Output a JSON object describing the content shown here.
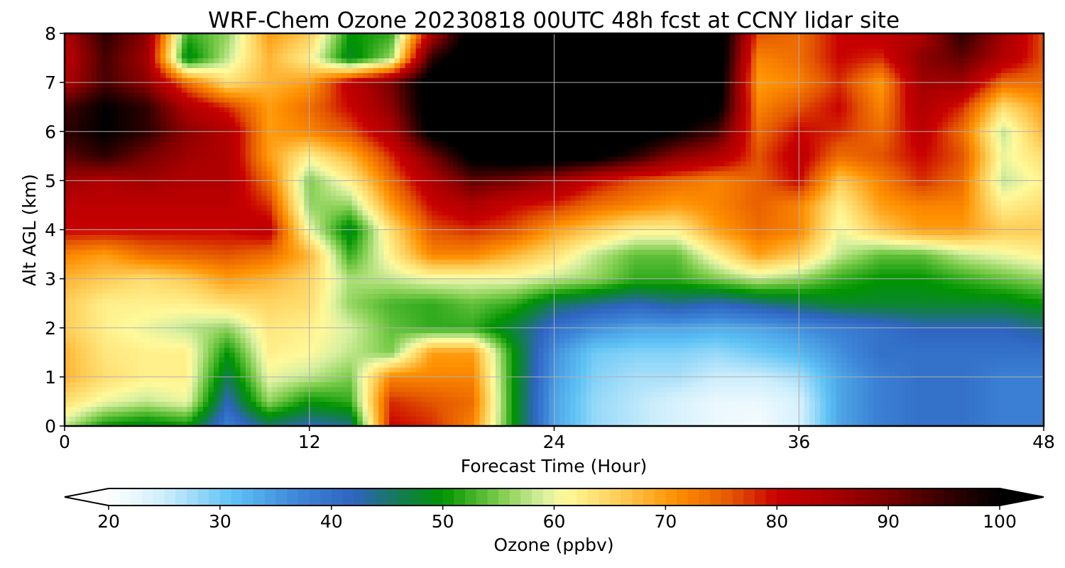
{
  "chart_data": {
    "type": "heatmap",
    "title": "WRF-Chem Ozone  20230818 00UTC 48h fcst at CCNY lidar site",
    "xlabel": "Forecast Time (Hour)",
    "ylabel": "Alt AGL (km)",
    "xlim": [
      0,
      48
    ],
    "ylim": [
      0,
      8
    ],
    "x_ticks": [
      0,
      12,
      24,
      36,
      48
    ],
    "y_ticks": [
      0,
      1,
      2,
      3,
      4,
      5,
      6,
      7,
      8
    ],
    "grid": true,
    "z_unit": "ppbv",
    "x": [
      0,
      2,
      4,
      6,
      8,
      10,
      12,
      14,
      16,
      18,
      20,
      22,
      24,
      26,
      28,
      30,
      32,
      34,
      36,
      38,
      40,
      42,
      44,
      46,
      48
    ],
    "y": [
      0,
      0.5,
      1,
      1.5,
      2,
      2.5,
      3,
      3.5,
      4,
      4.5,
      5,
      5.5,
      6,
      6.5,
      7,
      7.5,
      8
    ],
    "z": [
      [
        58,
        50,
        48,
        50,
        38,
        45,
        42,
        44,
        80,
        78,
        72,
        50,
        34,
        28,
        26,
        24,
        22,
        21,
        24,
        34,
        38,
        40,
        40,
        38,
        38
      ],
      [
        64,
        60,
        58,
        60,
        42,
        56,
        50,
        52,
        78,
        76,
        74,
        50,
        34,
        28,
        26,
        24,
        22,
        22,
        24,
        34,
        38,
        40,
        40,
        38,
        38
      ],
      [
        68,
        64,
        62,
        62,
        46,
        60,
        58,
        55,
        72,
        72,
        72,
        50,
        35,
        29,
        27,
        27,
        25,
        25,
        27,
        34,
        38,
        40,
        40,
        38,
        38
      ],
      [
        68,
        63,
        62,
        62,
        50,
        62,
        61,
        58,
        55,
        70,
        70,
        50,
        36,
        30,
        29,
        29,
        28,
        30,
        32,
        36,
        40,
        40,
        40,
        40,
        40
      ],
      [
        66,
        62,
        60,
        58,
        56,
        63,
        62,
        59,
        54,
        52,
        52,
        47,
        40,
        36,
        34,
        34,
        33,
        34,
        36,
        38,
        40,
        42,
        42,
        42,
        44
      ],
      [
        66,
        62,
        62,
        62,
        64,
        65,
        64,
        56,
        53,
        52,
        54,
        52,
        46,
        44,
        42,
        44,
        42,
        44,
        46,
        48,
        48,
        48,
        48,
        48,
        50
      ],
      [
        68,
        66,
        64,
        66,
        70,
        68,
        65,
        57,
        58,
        60,
        60,
        60,
        58,
        56,
        52,
        52,
        55,
        58,
        56,
        52,
        50,
        50,
        52,
        54,
        56
      ],
      [
        72,
        70,
        74,
        75,
        76,
        74,
        68,
        52,
        62,
        72,
        72,
        68,
        64,
        58,
        54,
        54,
        62,
        70,
        66,
        58,
        54,
        54,
        58,
        60,
        62
      ],
      [
        80,
        80,
        80,
        80,
        80,
        82,
        60,
        48,
        64,
        76,
        78,
        76,
        70,
        66,
        62,
        62,
        70,
        74,
        72,
        60,
        66,
        70,
        70,
        66,
        66
      ],
      [
        82,
        82,
        82,
        82,
        82,
        78,
        56,
        56,
        70,
        80,
        84,
        80,
        78,
        74,
        72,
        70,
        72,
        75,
        72,
        62,
        70,
        72,
        72,
        62,
        64
      ],
      [
        86,
        84,
        86,
        84,
        84,
        74,
        55,
        62,
        74,
        84,
        92,
        90,
        86,
        80,
        76,
        74,
        72,
        75,
        80,
        66,
        72,
        78,
        74,
        58,
        62
      ],
      [
        92,
        96,
        90,
        86,
        84,
        70,
        62,
        68,
        78,
        90,
        102,
        104,
        104,
        102,
        96,
        88,
        84,
        76,
        82,
        74,
        76,
        80,
        76,
        60,
        64
      ],
      [
        96,
        100,
        96,
        88,
        84,
        70,
        72,
        76,
        84,
        102,
        106,
        106,
        106,
        106,
        104,
        100,
        94,
        74,
        80,
        78,
        74,
        82,
        74,
        58,
        68
      ],
      [
        94,
        100,
        96,
        84,
        78,
        70,
        74,
        80,
        88,
        104,
        106,
        106,
        106,
        106,
        106,
        104,
        102,
        72,
        76,
        80,
        72,
        84,
        78,
        64,
        70
      ],
      [
        84,
        94,
        88,
        74,
        64,
        68,
        70,
        82,
        90,
        104,
        106,
        106,
        106,
        106,
        106,
        106,
        104,
        70,
        72,
        78,
        70,
        86,
        86,
        74,
        74
      ],
      [
        82,
        94,
        86,
        48,
        58,
        68,
        62,
        48,
        56,
        96,
        106,
        106,
        106,
        106,
        106,
        106,
        106,
        72,
        74,
        80,
        78,
        88,
        92,
        84,
        76
      ],
      [
        84,
        96,
        88,
        52,
        56,
        70,
        66,
        50,
        52,
        84,
        104,
        106,
        106,
        106,
        106,
        106,
        106,
        76,
        74,
        80,
        82,
        84,
        96,
        86,
        76
      ]
    ],
    "colorbar": {
      "label": "Ozone  (ppbv)",
      "min": 20,
      "max": 100,
      "extend": "both",
      "ticks": [
        20,
        30,
        40,
        50,
        60,
        70,
        80,
        90,
        100
      ],
      "stops": [
        {
          "v": 20,
          "c": "#ffffff"
        },
        {
          "v": 25,
          "c": "#cdeefc"
        },
        {
          "v": 31,
          "c": "#5fc3f5"
        },
        {
          "v": 37,
          "c": "#3d86d8"
        },
        {
          "v": 42,
          "c": "#2e64c0"
        },
        {
          "v": 46,
          "c": "#157b56"
        },
        {
          "v": 50,
          "c": "#009400"
        },
        {
          "v": 55,
          "c": "#7acb4a"
        },
        {
          "v": 59,
          "c": "#d9f0a0"
        },
        {
          "v": 61,
          "c": "#fff99a"
        },
        {
          "v": 66,
          "c": "#ffcc55"
        },
        {
          "v": 71,
          "c": "#ff9000"
        },
        {
          "v": 76,
          "c": "#e35500"
        },
        {
          "v": 80,
          "c": "#c80000"
        },
        {
          "v": 85,
          "c": "#aa0000"
        },
        {
          "v": 90,
          "c": "#780000"
        },
        {
          "v": 95,
          "c": "#380000"
        },
        {
          "v": 100,
          "c": "#000000"
        }
      ]
    }
  }
}
